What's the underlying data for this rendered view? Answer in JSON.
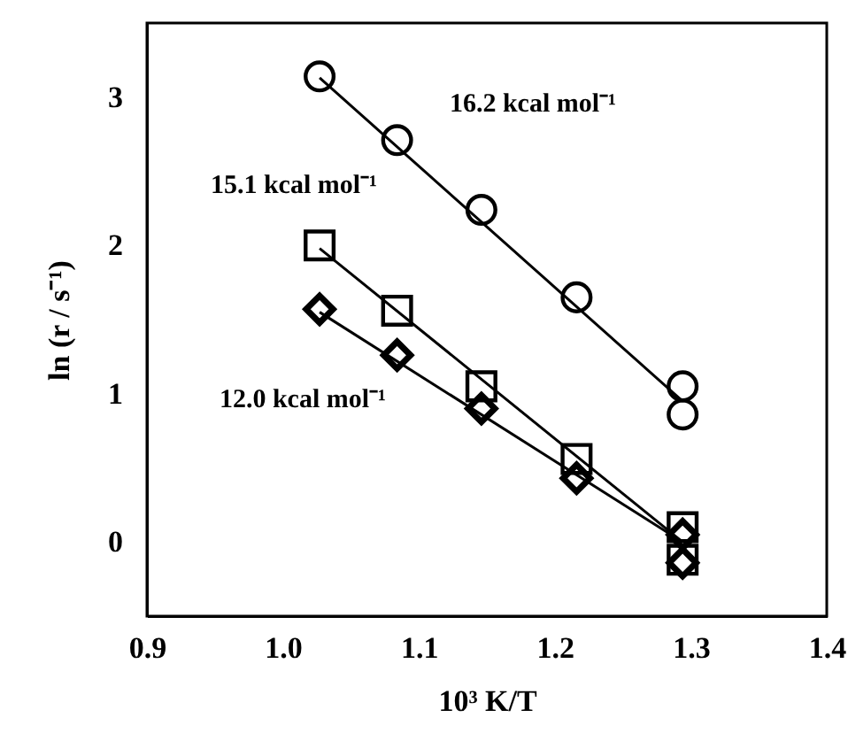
{
  "chart_data": {
    "type": "scatter",
    "xlabel": "10³ K/T",
    "ylabel": "ln (r / s⁻¹)",
    "xlim": [
      0.9,
      1.4
    ],
    "xticks": [
      {
        "value": 0.9,
        "label": "0.9"
      },
      {
        "value": 1.0,
        "label": "1.0"
      },
      {
        "value": 1.1,
        "label": "1.1"
      },
      {
        "value": 1.2,
        "label": "1.2"
      },
      {
        "value": 1.3,
        "label": "1.3"
      },
      {
        "value": 1.4,
        "label": "1.4"
      }
    ],
    "ylim": [
      -0.5,
      3.5
    ],
    "yticks": [
      0,
      1,
      2,
      3
    ],
    "grid": false,
    "series": [
      {
        "marker": "circle",
        "color": "#000000",
        "x": [
          1.027,
          1.084,
          1.146,
          1.216,
          1.294,
          1.294
        ],
        "values": [
          3.14,
          2.71,
          2.24,
          1.65,
          1.05,
          0.86
        ]
      },
      {
        "marker": "square",
        "color": "#000000",
        "x": [
          1.027,
          1.084,
          1.146,
          1.216,
          1.294,
          1.294
        ],
        "values": [
          2.0,
          1.56,
          1.05,
          0.56,
          0.1,
          -0.12
        ]
      },
      {
        "marker": "diamond",
        "color": "#000000",
        "x": [
          1.027,
          1.084,
          1.146,
          1.216,
          1.294,
          1.294
        ],
        "values": [
          1.57,
          1.26,
          0.9,
          0.43,
          0.05,
          -0.14
        ]
      },
      {
        "type": "line",
        "marker": "none",
        "color": "#000000",
        "x": [
          1.027,
          1.294
        ],
        "values": [
          3.13,
          0.95
        ]
      },
      {
        "type": "line",
        "marker": "none",
        "color": "#000000",
        "x": [
          1.027,
          1.294
        ],
        "values": [
          1.98,
          0.0
        ]
      },
      {
        "type": "line",
        "marker": "none",
        "color": "#000000",
        "x": [
          1.027,
          1.294
        ],
        "values": [
          1.55,
          0.0
        ]
      }
    ],
    "annotations": [
      "16.2 kcal mol⁻¹",
      "15.1 kcal mol⁻¹",
      "12.0 kcal mol⁻¹"
    ]
  }
}
